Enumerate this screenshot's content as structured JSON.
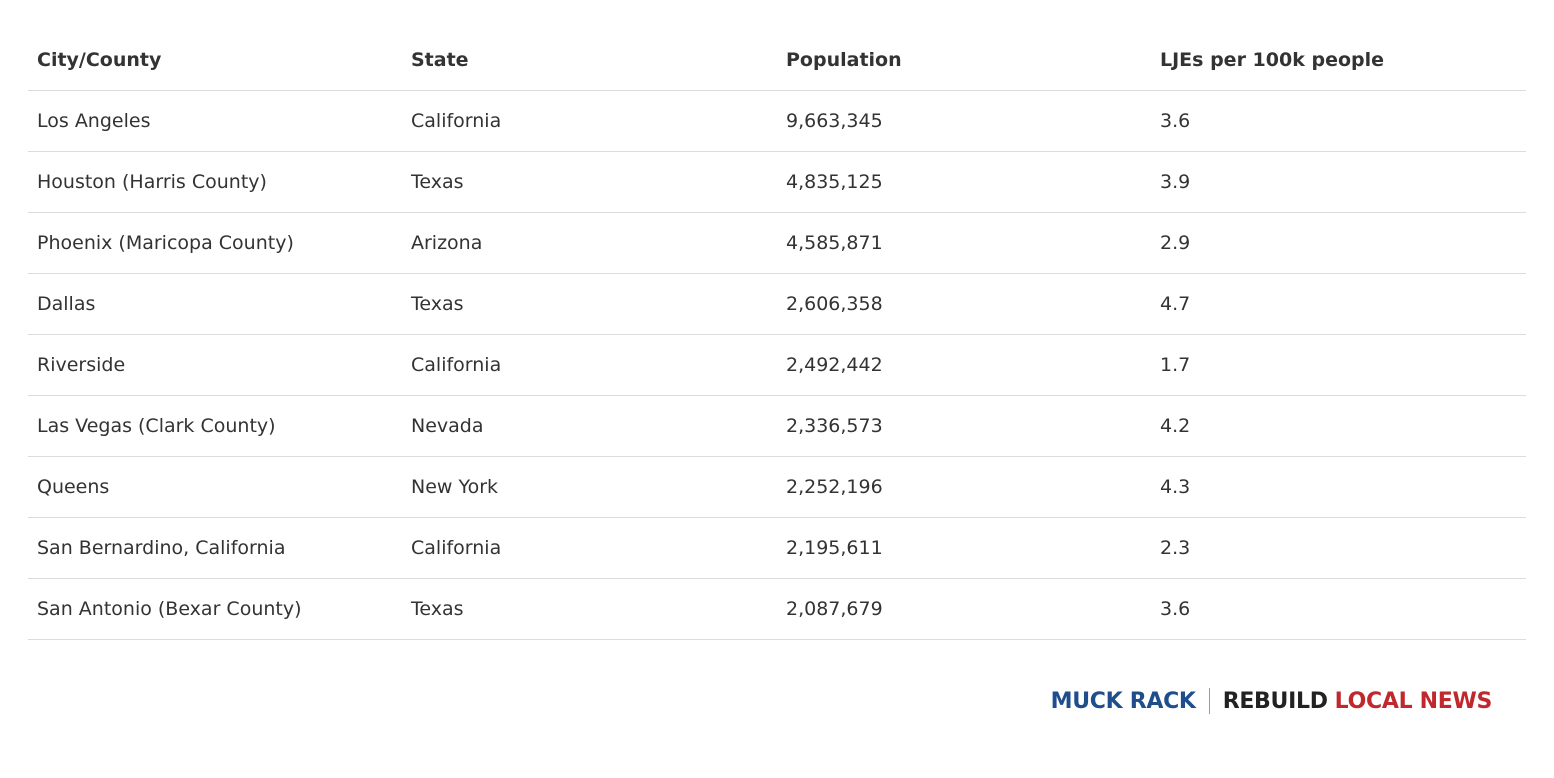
{
  "chart_data": {
    "type": "table",
    "columns": [
      "City/County",
      "State",
      "Population",
      "LJEs per 100k people"
    ],
    "rows": [
      [
        "Los Angeles",
        "California",
        "9,663,345",
        "3.6"
      ],
      [
        "Houston (Harris County)",
        "Texas",
        "4,835,125",
        "3.9"
      ],
      [
        "Phoenix (Maricopa County)",
        "Arizona",
        "4,585,871",
        "2.9"
      ],
      [
        "Dallas",
        "Texas",
        "2,606,358",
        "4.7"
      ],
      [
        "Riverside",
        "California",
        "2,492,442",
        "1.7"
      ],
      [
        "Las Vegas (Clark County)",
        "Nevada",
        "2,336,573",
        "4.2"
      ],
      [
        "Queens",
        "New York",
        "2,252,196",
        "4.3"
      ],
      [
        "San Bernardino, California",
        "California",
        "2,195,611",
        "2.3"
      ],
      [
        "San Antonio (Bexar County)",
        "Texas",
        "2,087,679",
        "3.6"
      ]
    ]
  },
  "logos": {
    "muck_rack": "MUCK RACK",
    "rebuild": "REBUILD",
    "local_news": "LOCAL NEWS",
    "colors": {
      "muck_rack": "#1f4e8c",
      "rebuild": "#222222",
      "local_news": "#c0282d"
    }
  }
}
